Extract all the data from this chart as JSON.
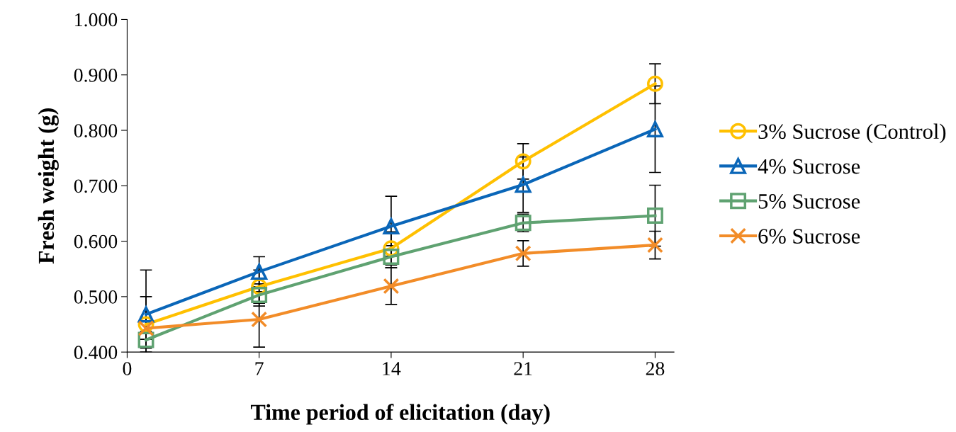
{
  "chart_data": {
    "type": "line",
    "xlabel": "Time period of elicitation (day)",
    "ylabel": "Fresh weight (g)",
    "x": [
      1,
      7,
      14,
      21,
      28
    ],
    "series": [
      {
        "name": "3% Sucrose (Control)",
        "color": "#ffc000",
        "marker": "circle",
        "values": [
          0.45,
          0.518,
          0.587,
          0.744,
          0.884
        ],
        "errors": [
          0.05,
          0.03,
          0.03,
          0.032,
          0.036
        ]
      },
      {
        "name": "4% Sucrose",
        "color": "#0a66b8",
        "marker": "triangle",
        "values": [
          0.468,
          0.545,
          0.627,
          0.702,
          0.802
        ],
        "errors": [
          0.08,
          0.027,
          0.054,
          0.05,
          0.078
        ]
      },
      {
        "name": "5% Sucrose",
        "color": "#5fa271",
        "marker": "square",
        "values": [
          0.422,
          0.503,
          0.572,
          0.633,
          0.646
        ],
        "errors": [
          0.015,
          0.02,
          0.02,
          0.016,
          0.055
        ]
      },
      {
        "name": "6% Sucrose",
        "color": "#f28c28",
        "marker": "cross",
        "values": [
          0.443,
          0.459,
          0.519,
          0.578,
          0.593
        ],
        "errors": [
          0.02,
          0.05,
          0.033,
          0.023,
          0.025
        ]
      }
    ],
    "xlim": [
      0,
      29
    ],
    "xticks": [
      0,
      7,
      14,
      21,
      28
    ],
    "ylim": [
      0.4,
      1.0
    ],
    "yticks": [
      {
        "value": 0.4,
        "label": "0.400"
      },
      {
        "value": 0.5,
        "label": "0.500"
      },
      {
        "value": 0.6,
        "label": "0.600"
      },
      {
        "value": 0.7,
        "label": "0.700"
      },
      {
        "value": 0.8,
        "label": "0.800"
      },
      {
        "value": 0.9,
        "label": "0.900"
      },
      {
        "value": 1.0,
        "label": "1.000"
      }
    ],
    "grid": false,
    "legend": "right",
    "line_style": "solid"
  }
}
